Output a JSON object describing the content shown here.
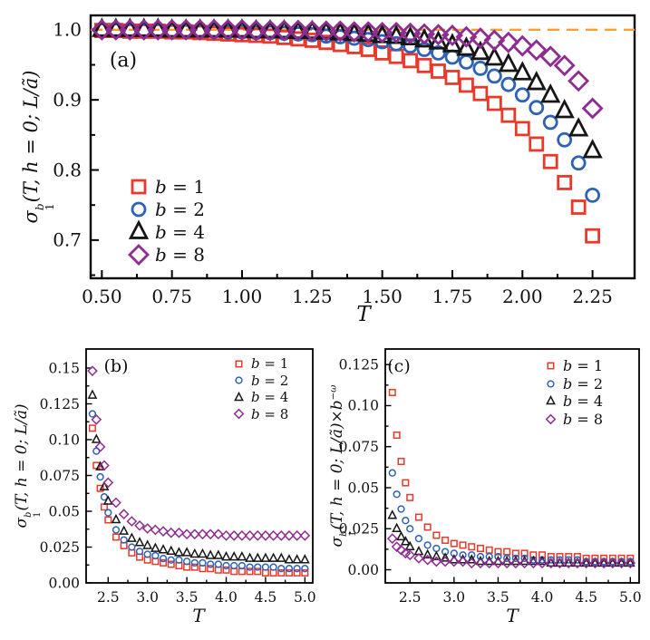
{
  "figure": {
    "background": "#ffffff",
    "colors": {
      "red": "#e8392b",
      "blue": "#2d62b6",
      "black": "#161616",
      "purple": "#8e2d90",
      "orange_dash": "#ff9d2e"
    }
  },
  "chart_data": [
    {
      "type": "scatter",
      "panel_label": "(a)",
      "xlabel": "T",
      "ylabel_parts": {
        "sigma": "σ",
        "sup": "b",
        "sub": "1",
        "args": "(T, h = 0; L/ã)"
      },
      "xlim": [
        0.46,
        2.4
      ],
      "ylim": [
        0.6455,
        1.0205
      ],
      "x_major_ticks": [
        0.5,
        0.75,
        1.0,
        1.25,
        1.5,
        1.75,
        2.0,
        2.25
      ],
      "x_tick_labels": [
        "0.50",
        "0.75",
        "1.00",
        "1.25",
        "1.50",
        "1.75",
        "2.00",
        "2.25"
      ],
      "x_minor_ticks": [
        0.625,
        0.875,
        1.125,
        1.375,
        1.625,
        1.875,
        2.125
      ],
      "y_major_ticks": [
        0.7,
        0.8,
        0.9,
        1.0
      ],
      "y_tick_labels": [
        "0.7",
        "0.8",
        "0.9",
        "1.0"
      ],
      "y_minor_ticks": [
        0.65,
        0.75,
        0.85,
        0.95
      ],
      "grid": false,
      "legend_position": "lower left",
      "reference_line": {
        "y": 1.0,
        "style": "dashed",
        "color": "#ff9d2e"
      },
      "x": [
        0.5,
        0.55,
        0.6,
        0.65,
        0.7,
        0.75,
        0.8,
        0.85,
        0.9,
        0.95,
        1.0,
        1.05,
        1.1,
        1.15,
        1.2,
        1.25,
        1.3,
        1.35,
        1.4,
        1.45,
        1.5,
        1.55,
        1.6,
        1.65,
        1.7,
        1.75,
        1.8,
        1.85,
        1.9,
        1.95,
        2.0,
        2.05,
        2.1,
        2.15,
        2.2,
        2.25
      ],
      "series": [
        {
          "name": "b = 1",
          "b": 1,
          "marker": "square",
          "color": "#e8392b",
          "values": [
            0.999,
            0.999,
            0.998,
            0.998,
            0.998,
            0.997,
            0.997,
            0.996,
            0.995,
            0.994,
            0.993,
            0.992,
            0.991,
            0.989,
            0.987,
            0.985,
            0.982,
            0.979,
            0.976,
            0.972,
            0.967,
            0.962,
            0.956,
            0.949,
            0.941,
            0.932,
            0.921,
            0.909,
            0.895,
            0.878,
            0.859,
            0.837,
            0.812,
            0.782,
            0.747,
            0.706
          ]
        },
        {
          "name": "b = 2",
          "b": 2,
          "marker": "circle",
          "color": "#2d62b6",
          "values": [
            1.0,
            0.999,
            0.999,
            0.999,
            0.999,
            0.999,
            0.998,
            0.998,
            0.998,
            0.997,
            0.997,
            0.996,
            0.996,
            0.995,
            0.994,
            0.993,
            0.991,
            0.99,
            0.988,
            0.986,
            0.983,
            0.98,
            0.977,
            0.972,
            0.967,
            0.961,
            0.954,
            0.945,
            0.934,
            0.922,
            0.907,
            0.889,
            0.868,
            0.843,
            0.81,
            0.764
          ]
        },
        {
          "name": "b = 4",
          "b": 4,
          "marker": "triangle",
          "color": "#161616",
          "values": [
            1.0,
            1.0,
            1.0,
            1.0,
            1.0,
            0.999,
            0.999,
            0.999,
            0.999,
            0.999,
            0.999,
            0.998,
            0.998,
            0.998,
            0.997,
            0.997,
            0.996,
            0.995,
            0.994,
            0.993,
            0.991,
            0.99,
            0.988,
            0.985,
            0.982,
            0.978,
            0.973,
            0.967,
            0.959,
            0.95,
            0.938,
            0.924,
            0.906,
            0.884,
            0.858,
            0.827
          ]
        },
        {
          "name": "b = 8",
          "b": 8,
          "marker": "diamond",
          "color": "#8e2d90",
          "values": [
            1.0,
            1.0,
            1.0,
            1.0,
            1.0,
            1.0,
            1.0,
            1.0,
            1.0,
            1.0,
            1.0,
            0.999,
            0.999,
            0.999,
            0.999,
            0.998,
            0.998,
            0.998,
            0.997,
            0.997,
            0.996,
            0.996,
            0.995,
            0.994,
            0.993,
            0.992,
            0.99,
            0.988,
            0.985,
            0.982,
            0.977,
            0.971,
            0.962,
            0.949,
            0.927,
            0.888
          ]
        }
      ]
    },
    {
      "type": "scatter",
      "panel_label": "(b)",
      "xlabel": "T",
      "ylabel_parts": {
        "sigma": "σ",
        "sup": "b",
        "sub": "1",
        "args": "(T, h = 0; L/ã)"
      },
      "xlim": [
        2.22,
        5.1
      ],
      "ylim": [
        0.0,
        0.1633
      ],
      "x_major_ticks": [
        2.5,
        3.0,
        3.5,
        4.0,
        4.5,
        5.0
      ],
      "x_tick_labels": [
        "2.5",
        "3.0",
        "3.5",
        "4.0",
        "4.5",
        "5.0"
      ],
      "x_minor_ticks": [
        2.75,
        3.25,
        3.75,
        4.25,
        4.75
      ],
      "y_major_ticks": [
        0.0,
        0.025,
        0.05,
        0.075,
        0.1,
        0.125,
        0.15
      ],
      "y_tick_labels": [
        "0.00",
        "0.025",
        "0.05",
        "0.075",
        "0.10",
        "0.125",
        "0.15"
      ],
      "y_minor_ticks": [
        0.0125,
        0.0375,
        0.0625,
        0.0875,
        0.1125,
        0.1375
      ],
      "grid": false,
      "legend_position": "upper right",
      "x": [
        2.3,
        2.35,
        2.4,
        2.45,
        2.5,
        2.6,
        2.7,
        2.8,
        2.9,
        3.0,
        3.1,
        3.2,
        3.3,
        3.4,
        3.5,
        3.6,
        3.7,
        3.8,
        3.9,
        4.0,
        4.1,
        4.2,
        4.3,
        4.4,
        4.5,
        4.6,
        4.7,
        4.8,
        4.9,
        5.0
      ],
      "series": [
        {
          "name": "b = 1",
          "b": 1,
          "marker": "square",
          "color": "#e8392b",
          "values": [
            0.108,
            0.082,
            0.066,
            0.053,
            0.044,
            0.032,
            0.026,
            0.021,
            0.018,
            0.016,
            0.015,
            0.014,
            0.013,
            0.012,
            0.011,
            0.011,
            0.01,
            0.01,
            0.009,
            0.009,
            0.008,
            0.008,
            0.008,
            0.008,
            0.007,
            0.007,
            0.007,
            0.007,
            0.007,
            0.007
          ]
        },
        {
          "name": "b = 2",
          "b": 2,
          "marker": "circle",
          "color": "#2d62b6",
          "values": [
            0.118,
            0.092,
            0.074,
            0.06,
            0.049,
            0.037,
            0.03,
            0.025,
            0.022,
            0.02,
            0.019,
            0.017,
            0.016,
            0.016,
            0.015,
            0.014,
            0.014,
            0.013,
            0.013,
            0.012,
            0.012,
            0.012,
            0.011,
            0.011,
            0.011,
            0.011,
            0.01,
            0.01,
            0.01,
            0.01
          ]
        },
        {
          "name": "b = 4",
          "b": 4,
          "marker": "triangle",
          "color": "#161616",
          "values": [
            0.131,
            0.1,
            0.081,
            0.067,
            0.057,
            0.044,
            0.036,
            0.031,
            0.028,
            0.026,
            0.024,
            0.023,
            0.022,
            0.021,
            0.021,
            0.02,
            0.02,
            0.019,
            0.019,
            0.018,
            0.018,
            0.018,
            0.017,
            0.017,
            0.017,
            0.017,
            0.017,
            0.016,
            0.016,
            0.016
          ]
        },
        {
          "name": "b = 8",
          "b": 8,
          "marker": "diamond",
          "color": "#8e2d90",
          "values": [
            0.148,
            0.114,
            0.095,
            0.082,
            0.07,
            0.056,
            0.048,
            0.043,
            0.04,
            0.038,
            0.037,
            0.036,
            0.035,
            0.035,
            0.034,
            0.034,
            0.034,
            0.034,
            0.034,
            0.033,
            0.033,
            0.033,
            0.033,
            0.033,
            0.033,
            0.033,
            0.033,
            0.033,
            0.033,
            0.033
          ]
        }
      ]
    },
    {
      "type": "scatter",
      "panel_label": "(c)",
      "xlabel": "T",
      "ylabel_parts": {
        "sigma": "σ",
        "sup": "b",
        "sub": "1",
        "args": "(T, h = 0; L/ã)",
        "times": "×",
        "tvar": "b",
        "exp": "−ω"
      },
      "xlim": [
        2.22,
        5.1
      ],
      "ylim": [
        -0.008,
        0.1345
      ],
      "x_major_ticks": [
        2.5,
        3.0,
        3.5,
        4.0,
        4.5,
        5.0
      ],
      "x_tick_labels": [
        "2.5",
        "3.0",
        "3.5",
        "4.0",
        "4.5",
        "5.0"
      ],
      "x_minor_ticks": [
        2.75,
        3.25,
        3.75,
        4.25,
        4.75
      ],
      "y_major_ticks": [
        0.0,
        0.025,
        0.05,
        0.075,
        0.1,
        0.125
      ],
      "y_tick_labels": [
        "0.00",
        "0.025",
        "0.05",
        "0.075",
        "0.10",
        "0.125"
      ],
      "y_minor_ticks": [
        0.0125,
        0.0375,
        0.0625,
        0.0875,
        0.1125
      ],
      "grid": false,
      "legend_position": "upper right",
      "x": [
        2.3,
        2.35,
        2.4,
        2.45,
        2.5,
        2.6,
        2.7,
        2.8,
        2.9,
        3.0,
        3.1,
        3.2,
        3.3,
        3.4,
        3.5,
        3.6,
        3.7,
        3.8,
        3.9,
        4.0,
        4.1,
        4.2,
        4.3,
        4.4,
        4.5,
        4.6,
        4.7,
        4.8,
        4.9,
        5.0
      ],
      "series": [
        {
          "name": "b = 1",
          "b": 1,
          "marker": "square",
          "color": "#e8392b",
          "values": [
            0.108,
            0.082,
            0.066,
            0.053,
            0.044,
            0.032,
            0.026,
            0.021,
            0.018,
            0.016,
            0.015,
            0.014,
            0.013,
            0.012,
            0.011,
            0.011,
            0.01,
            0.01,
            0.009,
            0.009,
            0.008,
            0.008,
            0.008,
            0.008,
            0.007,
            0.007,
            0.007,
            0.007,
            0.007,
            0.007
          ]
        },
        {
          "name": "b = 2",
          "b": 2,
          "marker": "circle",
          "color": "#2d62b6",
          "values": [
            0.059,
            0.046,
            0.037,
            0.03,
            0.025,
            0.019,
            0.015,
            0.013,
            0.011,
            0.01,
            0.009,
            0.009,
            0.008,
            0.008,
            0.008,
            0.007,
            0.007,
            0.007,
            0.006,
            0.006,
            0.006,
            0.006,
            0.006,
            0.006,
            0.005,
            0.005,
            0.005,
            0.005,
            0.005,
            0.005
          ]
        },
        {
          "name": "b = 4",
          "b": 4,
          "marker": "triangle",
          "color": "#161616",
          "values": [
            0.033,
            0.025,
            0.02,
            0.017,
            0.014,
            0.011,
            0.009,
            0.008,
            0.007,
            0.006,
            0.006,
            0.006,
            0.005,
            0.005,
            0.005,
            0.005,
            0.005,
            0.005,
            0.005,
            0.005,
            0.004,
            0.004,
            0.004,
            0.004,
            0.004,
            0.004,
            0.004,
            0.004,
            0.004,
            0.004
          ]
        },
        {
          "name": "b = 8",
          "b": 8,
          "marker": "diamond",
          "color": "#8e2d90",
          "values": [
            0.019,
            0.014,
            0.012,
            0.01,
            0.009,
            0.007,
            0.006,
            0.005,
            0.005,
            0.005,
            0.005,
            0.004,
            0.004,
            0.004,
            0.004,
            0.004,
            0.004,
            0.004,
            0.004,
            0.004,
            0.004,
            0.004,
            0.004,
            0.004,
            0.004,
            0.004,
            0.004,
            0.004,
            0.004,
            0.004
          ]
        }
      ]
    }
  ]
}
